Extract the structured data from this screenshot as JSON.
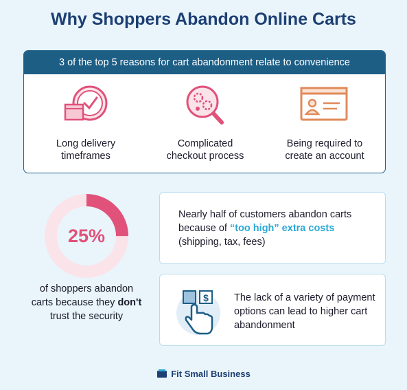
{
  "title": "Why Shoppers Abandon Online Carts",
  "panel": {
    "header": "3 of the top 5 reasons for cart abandonment relate to convenience",
    "reasons": [
      {
        "icon": "delivery-clock-icon",
        "line1": "Long delivery",
        "line2": "timeframes"
      },
      {
        "icon": "magnifier-gears-icon",
        "line1": "Complicated",
        "line2": "checkout process"
      },
      {
        "icon": "account-card-icon",
        "line1": "Being required to",
        "line2": "create an account"
      }
    ]
  },
  "stat": {
    "percent_label": "25%",
    "percent_value": 25,
    "caption_before": "of shoppers abandon carts because they",
    "caption_bold": "don't",
    "caption_after": "trust the security",
    "colors": {
      "accent": "#e0527a",
      "track": "#fbe3ea"
    }
  },
  "card1": {
    "line1": "Nearly half of customers abandon carts",
    "line2_prefix": "because of",
    "highlight": "“too high” extra costs",
    "line3": "(shipping, tax, fees)"
  },
  "card2": {
    "icon": "payment-tap-icon",
    "text": "The lack of a variety of payment options can lead to higher cart abandonment"
  },
  "brand": {
    "name": "Fit Small Business",
    "icon": "wallet-logo-icon"
  }
}
